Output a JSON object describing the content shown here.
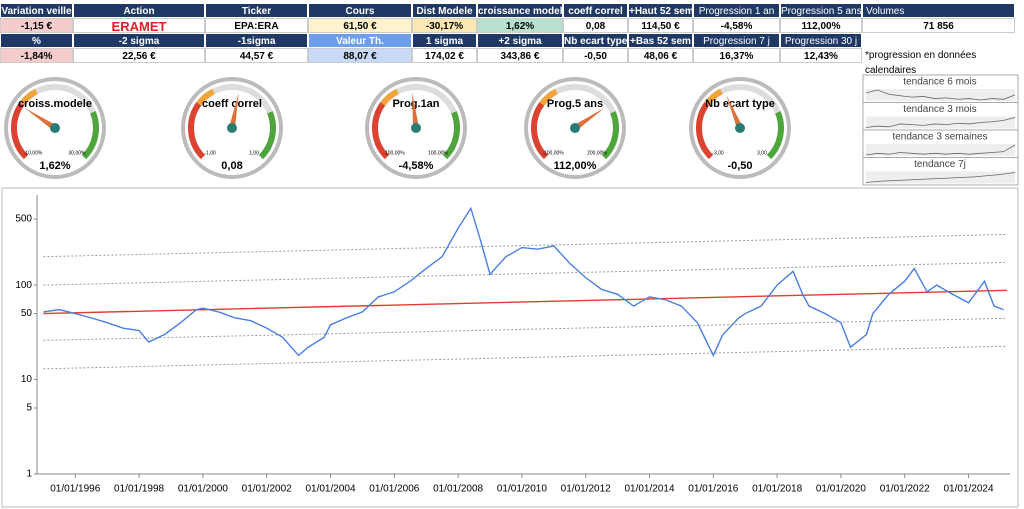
{
  "table": {
    "rows": [
      [
        "Variation veille",
        "Action",
        "Ticker",
        "Cours",
        "Dist Modele",
        "croissance modele",
        "coeff correl",
        "+Haut 52 sem",
        "Progression 1 an",
        "Progression 5 ans",
        "Volumes"
      ],
      [
        "-1,15 €",
        "ERAMET",
        "EPA:ERA",
        "61,50 €",
        "-30,17%",
        "1,62%",
        "0,08",
        "114,50 €",
        "-4,58%",
        "112,00%",
        "71 856"
      ],
      [
        "%",
        "-2 sigma",
        "-1sigma",
        "Valeur Th.",
        "1 sigma",
        "+2 sigma",
        "Nb ecart type",
        "+Bas 52 sem",
        "Progression 7 j",
        "Progression 30 j"
      ],
      [
        "-1,84%",
        "22,56 €",
        "44,57 €",
        "88,07 €",
        "174,02 €",
        "343,86 €",
        "-0,50",
        "48,06 €",
        "16,37%",
        "12,43%"
      ]
    ],
    "note": "*progression en données calendaires"
  },
  "gauges": [
    {
      "title": "croiss.modele",
      "min": -10,
      "max": 30,
      "min_label": "-10,00%",
      "max_label": "30,00%",
      "value": 1.62,
      "value_label": "1,62%"
    },
    {
      "title": "coeff correl",
      "min": -1,
      "max": 1,
      "min_label": "-1,00",
      "max_label": "1,00",
      "value": 0.08,
      "value_label": "0,08"
    },
    {
      "title": "Prog.1an",
      "min": -100,
      "max": 100,
      "min_label": "-100,00%",
      "max_label": "100,00%",
      "value": -4.58,
      "value_label": "-4,58%"
    },
    {
      "title": "Prog.5 ans",
      "min": -100,
      "max": 200,
      "min_label": "-100,00%",
      "max_label": "200,00%",
      "value": 112,
      "value_label": "112,00%"
    },
    {
      "title": "Nb ecart type",
      "min": -3,
      "max": 3,
      "min_label": "-3,00",
      "max_label": "3,00",
      "value": -0.5,
      "value_label": "-0,50"
    }
  ],
  "sparklines": [
    {
      "title": "tendance 6 mois",
      "values": [
        66,
        70,
        64,
        62,
        60,
        61,
        58,
        59,
        57,
        58,
        56,
        58,
        57,
        63
      ]
    },
    {
      "title": "tendance 3 mois",
      "values": [
        50,
        52,
        51,
        55,
        54,
        53,
        55,
        54,
        56,
        55,
        57,
        58,
        60,
        64
      ]
    },
    {
      "title": "tendance 3 semaines",
      "values": [
        52,
        54,
        53,
        55,
        54,
        53,
        54,
        53,
        54,
        53,
        54,
        55,
        56,
        64
      ]
    },
    {
      "title": "tendance 7j",
      "values": [
        50,
        52,
        53,
        54,
        55,
        56,
        57,
        58,
        59,
        61,
        63,
        66
      ]
    }
  ],
  "chart_data": {
    "type": "line",
    "log_scale": true,
    "grid": false,
    "xlim": [
      1994.8,
      2025.3
    ],
    "ylim": [
      1,
      900
    ],
    "yticks": [
      1,
      5,
      10,
      50,
      100,
      500
    ],
    "xticks": [
      {
        "value": 1996,
        "label": "01/01/1996"
      },
      {
        "value": 1998,
        "label": "01/01/1998"
      },
      {
        "value": 2000,
        "label": "01/01/2000"
      },
      {
        "value": 2002,
        "label": "01/01/2002"
      },
      {
        "value": 2004,
        "label": "01/01/2004"
      },
      {
        "value": 2006,
        "label": "01/01/2006"
      },
      {
        "value": 2008,
        "label": "01/01/2008"
      },
      {
        "value": 2010,
        "label": "01/01/2010"
      },
      {
        "value": 2012,
        "label": "01/01/2012"
      },
      {
        "value": 2014,
        "label": "01/01/2014"
      },
      {
        "value": 2016,
        "label": "01/01/2016"
      },
      {
        "value": 2018,
        "label": "01/01/2018"
      },
      {
        "value": 2020,
        "label": "01/01/2020"
      },
      {
        "value": 2022,
        "label": "01/01/2022"
      },
      {
        "value": 2024,
        "label": "01/01/2024"
      }
    ],
    "series": [
      {
        "color": "#999999",
        "style": "dotted",
        "x": [
          1995,
          2025.2
        ],
        "values": [
          200,
          343.86
        ]
      },
      {
        "color": "#999999",
        "style": "dotted",
        "x": [
          1995,
          2025.2
        ],
        "values": [
          100,
          174.02
        ]
      },
      {
        "color": "#999999",
        "style": "dotted",
        "x": [
          1995,
          2025.2
        ],
        "values": [
          26,
          44.57
        ]
      },
      {
        "color": "#999999",
        "style": "dotted",
        "x": [
          1995,
          2025.2
        ],
        "values": [
          13,
          22.56
        ]
      },
      {
        "color": "#e03c31",
        "style": "solid",
        "x": [
          1995,
          2025.2
        ],
        "values": [
          50,
          88.07
        ]
      },
      {
        "color": "#4a7fe0",
        "style": "solid",
        "x": [
          1995,
          1995.5,
          1996,
          1996.5,
          1997,
          1997.5,
          1998,
          1998.3,
          1998.8,
          1999.3,
          1999.8,
          2000,
          2000.5,
          2001,
          2001.5,
          2002,
          2002.5,
          2003,
          2003.3,
          2003.8,
          2004,
          2004.5,
          2005,
          2005.5,
          2006,
          2006.5,
          2007,
          2007.5,
          2008,
          2008.4,
          2008.7,
          2009,
          2009.5,
          2010,
          2010.5,
          2011,
          2011.5,
          2012,
          2012.5,
          2013,
          2013.5,
          2014,
          2014.5,
          2015,
          2015.5,
          2016,
          2016.3,
          2016.8,
          2017,
          2017.5,
          2018,
          2018.5,
          2018.8,
          2019,
          2019.5,
          2020,
          2020.3,
          2020.8,
          2021,
          2021.5,
          2022,
          2022.3,
          2022.7,
          2023,
          2023.5,
          2024,
          2024.5,
          2024.8,
          2025.1
        ],
        "values": [
          52,
          55,
          50,
          45,
          40,
          35,
          33,
          25,
          30,
          40,
          55,
          57,
          52,
          45,
          42,
          35,
          28,
          18,
          22,
          28,
          38,
          45,
          52,
          75,
          85,
          110,
          150,
          200,
          400,
          650,
          300,
          130,
          200,
          250,
          240,
          260,
          170,
          120,
          90,
          80,
          60,
          75,
          70,
          60,
          40,
          18,
          30,
          45,
          50,
          60,
          100,
          140,
          80,
          60,
          50,
          40,
          22,
          30,
          50,
          80,
          110,
          150,
          85,
          100,
          80,
          65,
          110,
          60,
          55
        ]
      }
    ]
  }
}
